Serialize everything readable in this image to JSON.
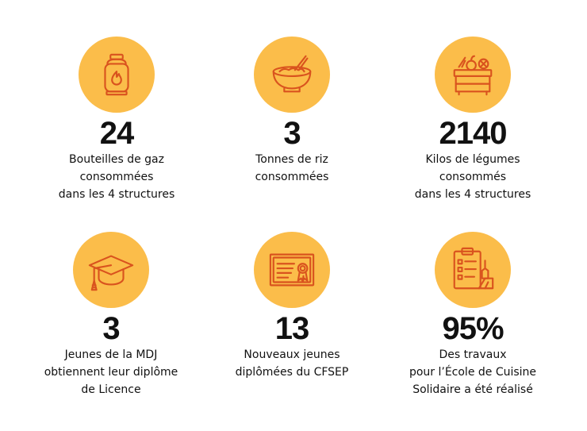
{
  "colors": {
    "circle": "#FBBD4A",
    "icon_stroke": "#D9531E",
    "text": "#111111",
    "background": "#FFFFFF"
  },
  "stats": [
    {
      "icon": "gas-bottle-icon",
      "number": "24",
      "lines": [
        "Bouteilles de gaz",
        "consommées",
        "dans les 4 structures"
      ]
    },
    {
      "icon": "rice-bowl-icon",
      "number": "3",
      "lines": [
        "Tonnes de riz",
        "consommées"
      ]
    },
    {
      "icon": "vegetable-crate-icon",
      "number": "2140",
      "lines": [
        "Kilos de légumes",
        "consommés",
        "dans les 4 structures"
      ]
    },
    {
      "icon": "graduation-cap-icon",
      "number": "3",
      "lines": [
        "Jeunes de la MDJ",
        "obtiennent leur diplôme",
        "de Licence"
      ]
    },
    {
      "icon": "diploma-certificate-icon",
      "number": "13",
      "lines": [
        "Nouveaux jeunes",
        "diplômées du CFSEP"
      ]
    },
    {
      "icon": "clipboard-tools-icon",
      "number": "95%",
      "lines": [
        "Des travaux",
        "pour l’École de Cuisine",
        "Solidaire a été réalisé"
      ]
    }
  ]
}
